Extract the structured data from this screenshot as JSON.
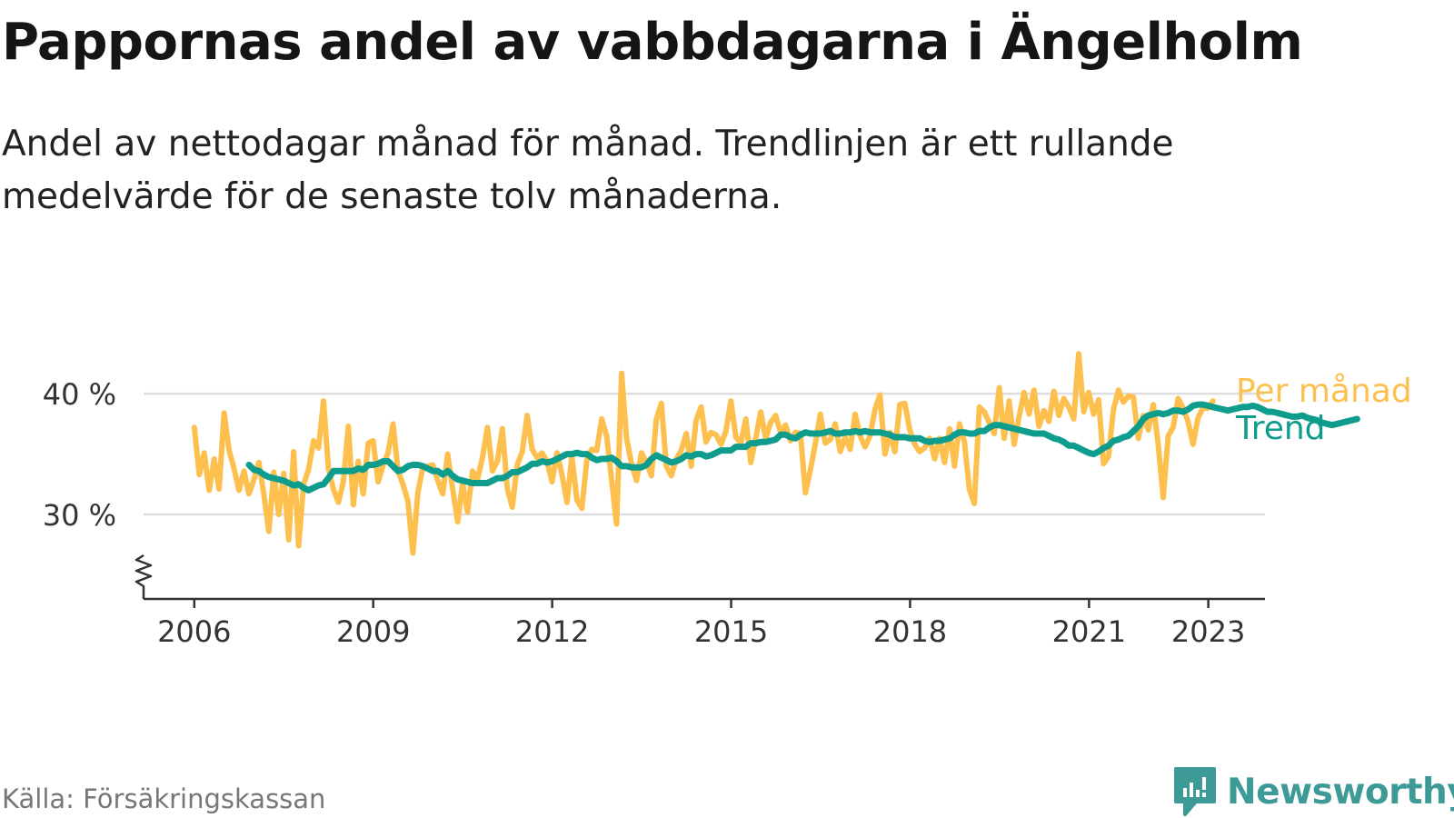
{
  "title": "Pappornas andel av vabbdagarna i Ängelholm",
  "subtitle": "Andel av nettodagar månad för månad. Trendlinjen är ett rullande medelvärde för de senaste tolv månaderna.",
  "source": "Källa: Försäkringskassan",
  "brand": "Newsworthy",
  "colors": {
    "monthly": "#fdc04f",
    "trend": "#0e9c8c",
    "grid": "#dddddd",
    "axis": "#333333",
    "brand": "#3d9a97"
  },
  "chart_data": {
    "type": "line",
    "x_unit": "year",
    "y_unit": "%",
    "ylim": [
      23,
      44
    ],
    "xlim": [
      2005.15,
      2023.95
    ],
    "y_ticks": [
      30,
      40
    ],
    "y_tick_labels": [
      "30 %",
      "40 %"
    ],
    "x_ticks": [
      2006,
      2009,
      2012,
      2015,
      2018,
      2021,
      2023
    ],
    "x_tick_labels": [
      "2006",
      "2009",
      "2012",
      "2015",
      "2018",
      "2021",
      "2023"
    ],
    "grid": "horizontal",
    "axis_break": true,
    "series": [
      {
        "name": "Per månad",
        "color": "#fdc04f",
        "x_start": 2006.0,
        "step": 0.0833,
        "values": [
          37.2,
          33.3,
          35.1,
          32.0,
          34.6,
          32.1,
          38.4,
          35.3,
          33.8,
          32.0,
          33.6,
          31.7,
          32.9,
          34.3,
          31.7,
          28.6,
          33.5,
          30.0,
          33.4,
          27.9,
          35.2,
          27.4,
          32.5,
          33.7,
          36.1,
          35.5,
          39.4,
          33.8,
          32.1,
          31.0,
          32.7,
          37.3,
          30.8,
          34.4,
          31.7,
          35.9,
          36.1,
          32.7,
          34.1,
          35.1,
          37.5,
          33.6,
          32.5,
          31.1,
          26.8,
          31.8,
          33.9,
          34.0,
          34.1,
          32.8,
          31.7,
          35.0,
          32.1,
          29.4,
          32.6,
          30.2,
          33.6,
          32.9,
          34.7,
          37.2,
          33.6,
          34.4,
          37.1,
          32.1,
          30.6,
          34.1,
          35.2,
          38.2,
          35.4,
          34.7,
          35.1,
          34.4,
          32.7,
          35.1,
          33.3,
          31.0,
          34.8,
          31.2,
          30.5,
          34.5,
          35.4,
          35.3,
          37.9,
          36.5,
          32.8,
          29.2,
          41.7,
          36.3,
          34.2,
          32.8,
          35.1,
          34.3,
          33.2,
          37.9,
          39.2,
          34.0,
          33.2,
          34.6,
          35.3,
          36.7,
          34.0,
          37.8,
          38.9,
          36.0,
          36.8,
          36.6,
          35.8,
          36.9,
          39.4,
          36.4,
          35.9,
          37.9,
          34.3,
          36.3,
          38.5,
          36.3,
          37.6,
          38.2,
          36.8,
          37.4,
          36.1,
          36.8,
          36.7,
          31.8,
          33.7,
          35.9,
          38.3,
          35.9,
          36.2,
          37.5,
          35.2,
          36.4,
          35.4,
          38.3,
          36.5,
          35.6,
          36.5,
          38.7,
          39.9,
          35.0,
          36.8,
          35.2,
          39.1,
          39.2,
          37.0,
          35.8,
          35.2,
          35.5,
          36.3,
          34.6,
          36.3,
          34.3,
          37.1,
          34.0,
          37.5,
          36.0,
          32.1,
          30.9,
          38.9,
          38.5,
          37.6,
          36.7,
          40.5,
          36.3,
          39.4,
          35.8,
          38.1,
          40.1,
          38.3,
          40.3,
          37.3,
          38.6,
          37.7,
          40.2,
          38.2,
          39.6,
          38.9,
          37.9,
          43.3,
          38.5,
          40.1,
          38.3,
          39.5,
          34.2,
          34.8,
          38.7,
          40.3,
          39.3,
          39.8,
          39.7,
          36.3,
          38.2,
          37.0,
          39.1,
          35.8,
          31.4,
          36.5,
          37.2,
          39.6,
          38.8,
          37.7,
          35.8,
          38.0,
          38.8,
          38.8,
          39.4
        ]
      },
      {
        "name": "Trend",
        "color": "#0e9c8c",
        "x_start": 2006.9167,
        "step": 0.0833,
        "values": [
          34.1,
          33.7,
          33.6,
          33.3,
          33.1,
          33.0,
          32.9,
          32.8,
          32.6,
          32.4,
          32.5,
          32.2,
          32.0,
          32.2,
          32.4,
          32.5,
          33.0,
          33.6,
          33.6,
          33.6,
          33.6,
          33.6,
          33.8,
          33.7,
          34.1,
          34.1,
          34.2,
          34.4,
          34.4,
          34.0,
          33.6,
          33.7,
          34.0,
          34.1,
          34.1,
          34.0,
          33.8,
          33.6,
          33.6,
          33.3,
          33.6,
          33.2,
          32.9,
          32.8,
          32.7,
          32.6,
          32.6,
          32.6,
          32.6,
          32.8,
          33.0,
          33.0,
          33.2,
          33.5,
          33.5,
          33.7,
          33.9,
          34.2,
          34.2,
          34.4,
          34.3,
          34.4,
          34.6,
          34.8,
          35.0,
          35.0,
          35.1,
          35.0,
          35.0,
          34.7,
          34.5,
          34.6,
          34.6,
          34.7,
          34.4,
          34.0,
          34.0,
          33.9,
          33.9,
          33.9,
          34.1,
          34.6,
          34.9,
          34.7,
          34.5,
          34.3,
          34.4,
          34.6,
          34.9,
          34.8,
          35.0,
          35.0,
          34.8,
          34.9,
          35.1,
          35.3,
          35.3,
          35.3,
          35.6,
          35.6,
          35.6,
          35.9,
          35.9,
          36.0,
          36.0,
          36.1,
          36.2,
          36.6,
          36.6,
          36.4,
          36.3,
          36.6,
          36.8,
          36.7,
          36.7,
          36.7,
          36.8,
          36.9,
          36.7,
          36.7,
          36.8,
          36.8,
          36.9,
          36.8,
          36.9,
          36.8,
          36.8,
          36.8,
          36.7,
          36.6,
          36.4,
          36.4,
          36.4,
          36.3,
          36.3,
          36.3,
          36.1,
          36.0,
          36.1,
          36.1,
          36.2,
          36.3,
          36.6,
          36.8,
          36.8,
          36.7,
          36.7,
          36.9,
          36.9,
          37.2,
          37.4,
          37.4,
          37.3,
          37.2,
          37.1,
          37.0,
          36.9,
          36.8,
          36.7,
          36.7,
          36.7,
          36.5,
          36.3,
          36.2,
          36.0,
          35.7,
          35.7,
          35.5,
          35.3,
          35.1,
          35.0,
          35.2,
          35.5,
          35.7,
          36.1,
          36.2,
          36.4,
          36.5,
          36.9,
          37.3,
          37.9,
          38.2,
          38.3,
          38.4,
          38.3,
          38.4,
          38.6,
          38.6,
          38.5,
          38.7,
          39.0,
          39.1,
          39.1,
          39.0,
          38.9,
          38.8,
          38.7,
          38.6,
          38.7,
          38.8,
          38.9,
          38.9,
          39.0,
          38.9,
          38.7,
          38.5,
          38.5,
          38.4,
          38.3,
          38.2,
          38.1,
          38.1,
          38.2,
          38.0,
          37.9,
          37.8,
          37.6,
          37.5,
          37.4,
          37.5,
          37.6,
          37.7,
          37.8,
          37.9
        ]
      }
    ]
  }
}
